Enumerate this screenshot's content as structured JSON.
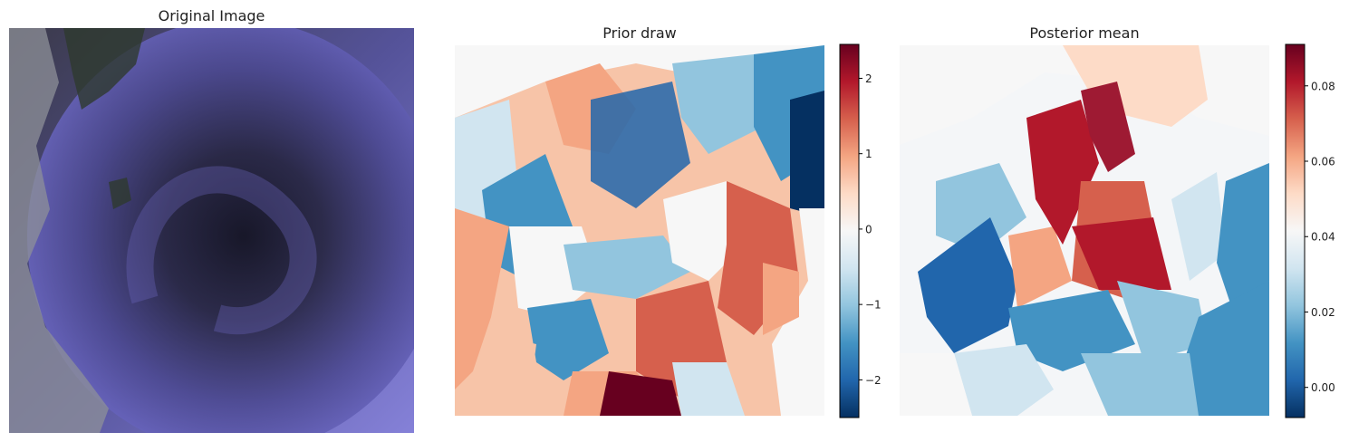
{
  "chart_data": [
    {
      "type": "image",
      "title": "Original Image",
      "colors": {
        "base": "#6e6ac8",
        "dark": "#111118",
        "land": "#9fa3a8"
      }
    },
    {
      "type": "heatmap",
      "title": "Prior draw",
      "colormap": "RdBu_r",
      "colorbar": {
        "range": [
          -2.5,
          2.45
        ],
        "ticks": [
          -2,
          -1,
          0,
          1,
          2
        ],
        "tick_labels": [
          "−2",
          "−1",
          "0",
          "1",
          "2"
        ]
      }
    },
    {
      "type": "heatmap",
      "title": "Posterior mean",
      "colormap": "RdBu_r",
      "colorbar": {
        "range": [
          -0.008,
          0.091
        ],
        "ticks": [
          0.0,
          0.02,
          0.04,
          0.06,
          0.08
        ],
        "tick_labels": [
          "0.00",
          "0.02",
          "0.04",
          "0.06",
          "0.08"
        ]
      }
    }
  ]
}
